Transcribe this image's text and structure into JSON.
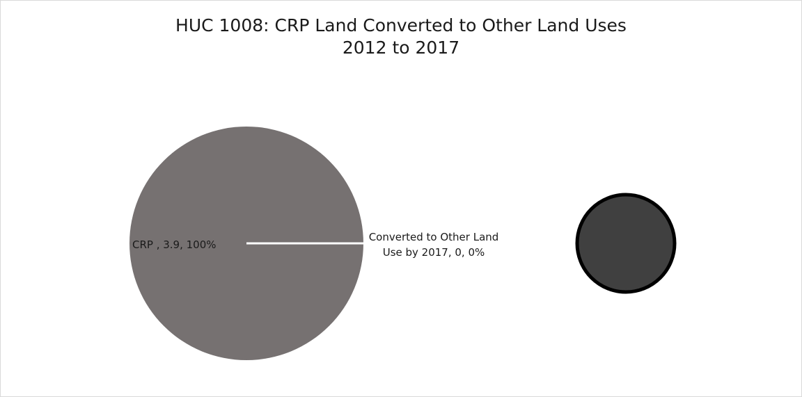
{
  "chart_data": {
    "type": "pie",
    "title": "HUC 1008: CRP Land Converted to Other Land Uses",
    "subtitle": "2012 to 2017",
    "slices": [
      {
        "name": "CRP ",
        "value": 3.9,
        "percent": "100%",
        "label": "CRP , 3.9, 100%",
        "color": "#767171"
      },
      {
        "name": "Converted to Other Land Use by 2017",
        "value": 0,
        "percent": "0%",
        "label_line1": "Converted to Other Land",
        "label_line2": "Use by 2017, 0, 0%",
        "color": "#404040"
      }
    ],
    "secondary": {
      "type": "pie",
      "values": [
        0
      ],
      "color": "#404040",
      "border": "#000000"
    },
    "divider_color": "#ffffff"
  }
}
